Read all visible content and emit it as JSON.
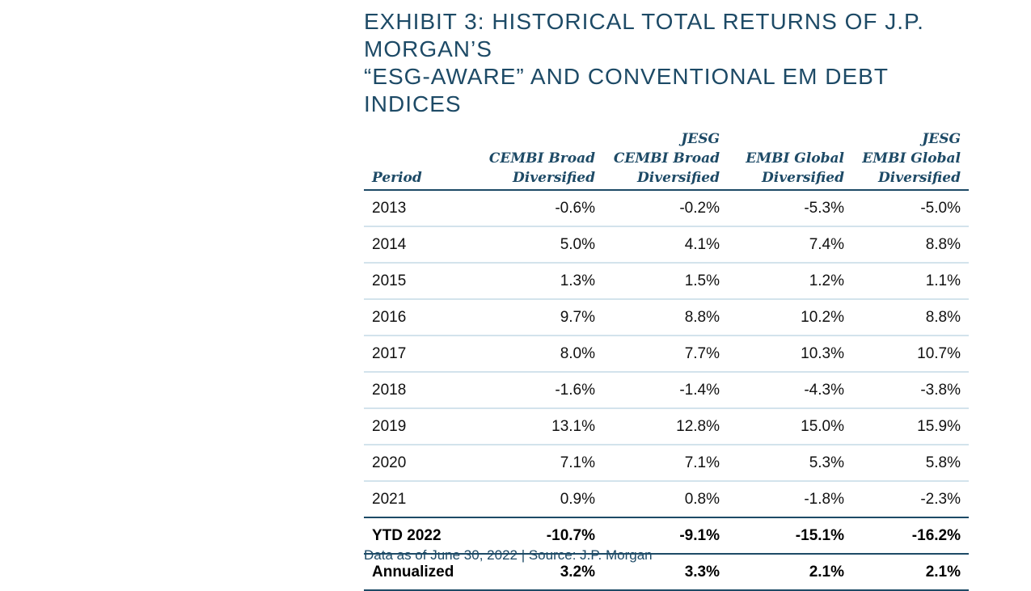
{
  "title_line1": "EXHIBIT 3: HISTORICAL TOTAL RETURNS OF J.P. MORGAN’S",
  "title_line2": "“ESG-AWARE” AND CONVENTIONAL EM DEBT INDICES",
  "columns": [
    {
      "l1": "",
      "l2": "",
      "l3": "Period"
    },
    {
      "l1": "",
      "l2": "CEMBI Broad",
      "l3": "Diversified"
    },
    {
      "l1": "JESG",
      "l2": "CEMBI Broad",
      "l3": "Diversified"
    },
    {
      "l1": "",
      "l2": "EMBI Global",
      "l3": "Diversified"
    },
    {
      "l1": "JESG",
      "l2": "EMBI Global",
      "l3": "Diversified"
    }
  ],
  "rows": [
    {
      "period": "2013",
      "v": [
        "-0.6%",
        "-0.2%",
        "-5.3%",
        "-5.0%"
      ]
    },
    {
      "period": "2014",
      "v": [
        "5.0%",
        "4.1%",
        "7.4%",
        "8.8%"
      ]
    },
    {
      "period": "2015",
      "v": [
        "1.3%",
        "1.5%",
        "1.2%",
        "1.1%"
      ]
    },
    {
      "period": "2016",
      "v": [
        "9.7%",
        "8.8%",
        "10.2%",
        "8.8%"
      ]
    },
    {
      "period": "2017",
      "v": [
        "8.0%",
        "7.7%",
        "10.3%",
        "10.7%"
      ]
    },
    {
      "period": "2018",
      "v": [
        "-1.6%",
        "-1.4%",
        "-4.3%",
        "-3.8%"
      ]
    },
    {
      "period": "2019",
      "v": [
        "13.1%",
        "12.8%",
        "15.0%",
        "15.9%"
      ]
    },
    {
      "period": "2020",
      "v": [
        "7.1%",
        "7.1%",
        "5.3%",
        "5.8%"
      ]
    },
    {
      "period": "2021",
      "v": [
        "0.9%",
        "0.8%",
        "-1.8%",
        "-2.3%"
      ]
    }
  ],
  "summary_rows": [
    {
      "period": "YTD 2022",
      "v": [
        "-10.7%",
        "-9.1%",
        "-15.1%",
        "-16.2%"
      ]
    },
    {
      "period": "Annualized",
      "v": [
        "3.2%",
        "3.3%",
        "2.1%",
        "2.1%"
      ]
    }
  ],
  "source_note": "Data as of June 30, 2022 | Source: J.P. Morgan"
}
